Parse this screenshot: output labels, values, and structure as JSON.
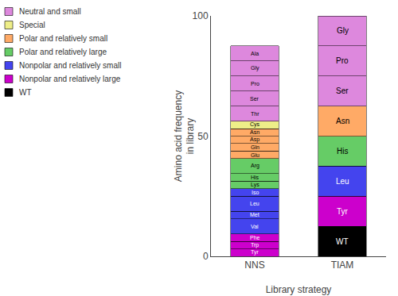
{
  "chart_data": {
    "type": "bar",
    "stacked": true,
    "categories": [
      "NNS",
      "TIAM"
    ],
    "xlabel": "Library strategy",
    "ylabel": "Amino acid frequency\nin library",
    "ylim": [
      0,
      100
    ],
    "yticks": [
      0,
      50,
      100
    ],
    "grid": false,
    "legend": "upper left",
    "stacks": [
      {
        "category": "NNS",
        "segments": [
          {
            "label": "Tyr",
            "value": 3.125,
            "color": "#cc00cc",
            "text_color": "white"
          },
          {
            "label": "Trp",
            "value": 3.125,
            "color": "#cc00cc",
            "text_color": "white"
          },
          {
            "label": "Phe",
            "value": 3.125,
            "color": "#cc00cc",
            "text_color": "white"
          },
          {
            "label": "Val",
            "value": 6.25,
            "color": "#4444ee",
            "text_color": "white"
          },
          {
            "label": "Met",
            "value": 3.125,
            "color": "#4444ee",
            "text_color": "white"
          },
          {
            "label": "Leu",
            "value": 6.25,
            "color": "#4444ee",
            "text_color": "white"
          },
          {
            "label": "Iso",
            "value": 3.125,
            "color": "#4444ee",
            "text_color": "white"
          },
          {
            "label": "Lys",
            "value": 3.125,
            "color": "#66cc66",
            "text_color": "black"
          },
          {
            "label": "His",
            "value": 3.125,
            "color": "#66cc66",
            "text_color": "black"
          },
          {
            "label": "Arg",
            "value": 6.25,
            "color": "#66cc66",
            "text_color": "black"
          },
          {
            "label": "Glu",
            "value": 3.125,
            "color": "#ffaa66",
            "text_color": "black"
          },
          {
            "label": "Gln",
            "value": 3.125,
            "color": "#ffaa66",
            "text_color": "black"
          },
          {
            "label": "Asp",
            "value": 3.125,
            "color": "#ffaa66",
            "text_color": "black"
          },
          {
            "label": "Asn",
            "value": 3.125,
            "color": "#ffaa66",
            "text_color": "black"
          },
          {
            "label": "Cys",
            "value": 3.125,
            "color": "#eeee88",
            "text_color": "black"
          },
          {
            "label": "Thr",
            "value": 6.25,
            "color": "#dd88dd",
            "text_color": "black"
          },
          {
            "label": "Ser",
            "value": 6.25,
            "color": "#dd88dd",
            "text_color": "black"
          },
          {
            "label": "Pro",
            "value": 6.25,
            "color": "#dd88dd",
            "text_color": "black"
          },
          {
            "label": "Gly",
            "value": 6.25,
            "color": "#dd88dd",
            "text_color": "black"
          },
          {
            "label": "Ala",
            "value": 6.25,
            "color": "#dd88dd",
            "text_color": "black"
          }
        ]
      },
      {
        "category": "TIAM",
        "segments": [
          {
            "label": "WT",
            "value": 12.5,
            "color": "#000000",
            "text_color": "white"
          },
          {
            "label": "Tyr",
            "value": 12.5,
            "color": "#cc00cc",
            "text_color": "white"
          },
          {
            "label": "Leu",
            "value": 12.5,
            "color": "#4444ee",
            "text_color": "white"
          },
          {
            "label": "His",
            "value": 12.5,
            "color": "#66cc66",
            "text_color": "black"
          },
          {
            "label": "Asn",
            "value": 12.5,
            "color": "#ffaa66",
            "text_color": "black"
          },
          {
            "label": "Ser",
            "value": 12.5,
            "color": "#dd88dd",
            "text_color": "black"
          },
          {
            "label": "Pro",
            "value": 12.5,
            "color": "#dd88dd",
            "text_color": "black"
          },
          {
            "label": "Gly",
            "value": 12.5,
            "color": "#dd88dd",
            "text_color": "black"
          }
        ]
      }
    ],
    "legend_entries": [
      {
        "label": "Neutral and small",
        "color": "#dd88dd"
      },
      {
        "label": "Special",
        "color": "#eeee88"
      },
      {
        "label": "Polar and relatively small",
        "color": "#ffaa66"
      },
      {
        "label": "Polar and relatively large",
        "color": "#66cc66"
      },
      {
        "label": "Nonpolar and relatively small",
        "color": "#4444ee"
      },
      {
        "label": "Nonpolar and relatively large",
        "color": "#cc00cc"
      },
      {
        "label": "WT",
        "color": "#000000"
      }
    ]
  }
}
